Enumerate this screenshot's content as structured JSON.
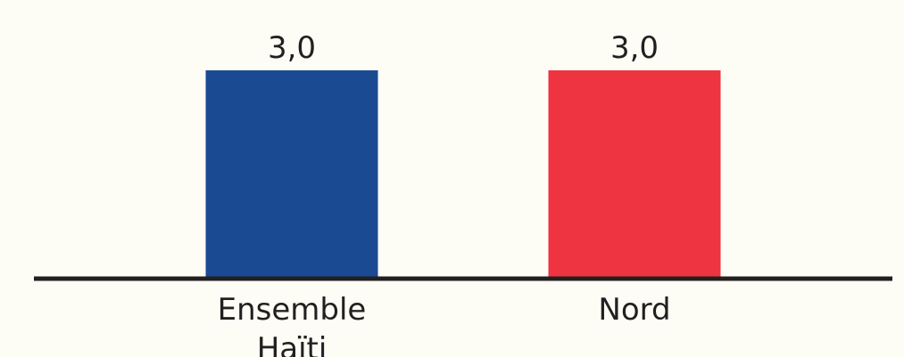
{
  "chart_data": {
    "type": "bar",
    "categories": [
      [
        "Ensemble",
        "Haïti"
      ],
      [
        "Nord"
      ]
    ],
    "values": [
      3.0,
      3.0
    ],
    "value_labels": [
      "3,0",
      "3,0"
    ],
    "colors": [
      "#1a4a92",
      "#ee3441"
    ],
    "ylim": [
      0,
      3.0
    ],
    "title": "",
    "xlabel": "",
    "ylabel": "",
    "grid": false,
    "legend": "none",
    "axis_color": "#231f20",
    "background": "#fdfdf6"
  }
}
